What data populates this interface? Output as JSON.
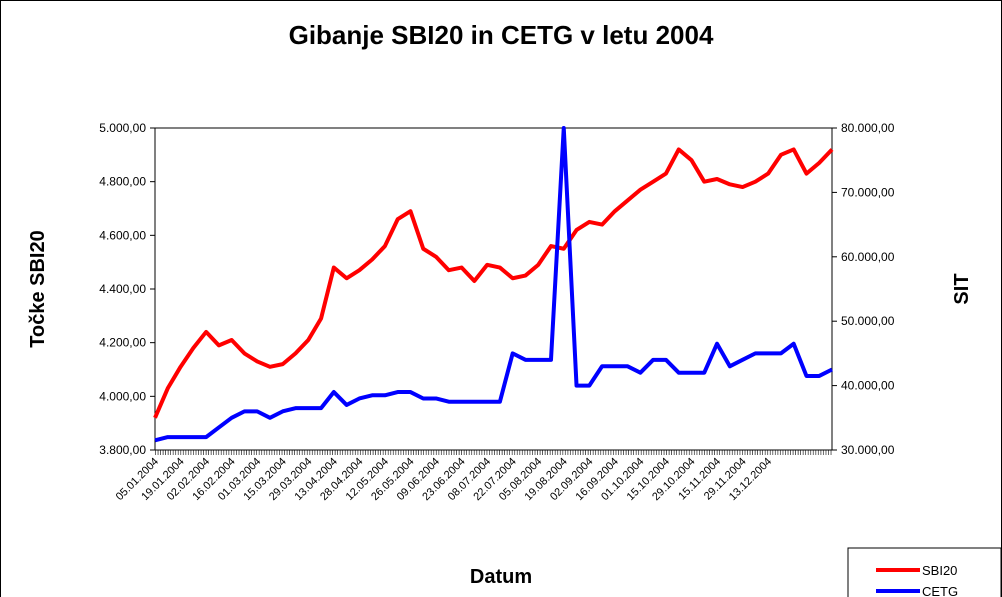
{
  "chart_data": {
    "type": "line",
    "title": "Gibanje SBI20 in CETG v letu 2004",
    "x_label": "Datum",
    "y_label": "Točke SBI20",
    "y2_label": "SIT",
    "legend": "bottom-right",
    "categories": [
      "05.01.2004",
      null,
      "19.01.2004",
      null,
      "02.02.2004",
      null,
      "16.02.2004",
      null,
      "01.03.2004",
      null,
      "15.03.2004",
      null,
      "29.03.2004",
      null,
      "13.04.2004",
      null,
      "28.04.2004",
      null,
      "12.05.2004",
      null,
      "26.05.2004",
      null,
      "09.06.2004",
      null,
      "23.06.2004",
      null,
      "08.07.2004",
      null,
      "22.07.2004",
      null,
      "05.08.2004",
      null,
      "19.08.2004",
      null,
      "02.09.2004",
      null,
      "16.09.2004",
      null,
      "01.10.2004",
      null,
      "15.10.2004",
      null,
      "29.10.2004",
      null,
      "15.11.2004",
      null,
      "29.11.2004",
      null,
      "13.12.2004",
      null,
      null,
      null,
      null,
      null
    ],
    "ylim": [
      3800,
      5000
    ],
    "yticks": [
      {
        "value": 3800,
        "label": "3.800,00"
      },
      {
        "value": 4000,
        "label": "4.000,00"
      },
      {
        "value": 4200,
        "label": "4.200,00"
      },
      {
        "value": 4400,
        "label": "4.400,00"
      },
      {
        "value": 4600,
        "label": "4.600,00"
      },
      {
        "value": 4800,
        "label": "4.800,00"
      },
      {
        "value": 5000,
        "label": "5.000,00"
      }
    ],
    "y2lim": [
      30000,
      80000
    ],
    "y2ticks": [
      {
        "value": 30000,
        "label": "30.000,00"
      },
      {
        "value": 40000,
        "label": "40.000,00"
      },
      {
        "value": 50000,
        "label": "50.000,00"
      },
      {
        "value": 60000,
        "label": "60.000,00"
      },
      {
        "value": 70000,
        "label": "70.000,00"
      },
      {
        "value": 80000,
        "label": "80.000,00"
      }
    ],
    "series": [
      {
        "name": "SBI20",
        "color": "#ff0000",
        "values": [
          3920,
          4030,
          4110,
          4180,
          4240,
          4190,
          4210,
          4160,
          4130,
          4110,
          4120,
          4160,
          4210,
          4290,
          4480,
          4440,
          4470,
          4510,
          4560,
          4660,
          4690,
          4550,
          4520,
          4470,
          4480,
          4430,
          4490,
          4480,
          4440,
          4450,
          4490,
          4560,
          4550,
          4620,
          4650,
          4640,
          4690,
          4730,
          4770,
          4800,
          4830,
          4920,
          4880,
          4800,
          4810,
          4790,
          4780,
          4800,
          4830,
          4900,
          4920,
          4830,
          4870,
          4920
        ]
      },
      {
        "name": "CETG",
        "color": "#0000ff",
        "axis": "y2",
        "values": [
          31500,
          32000,
          32000,
          32000,
          32000,
          33500,
          35000,
          36000,
          36000,
          35000,
          36000,
          36500,
          36500,
          36500,
          39000,
          37000,
          38000,
          38500,
          38500,
          39000,
          39000,
          38000,
          38000,
          37500,
          37500,
          37500,
          37500,
          37500,
          45000,
          44000,
          44000,
          44000,
          80000,
          40000,
          40000,
          43000,
          43000,
          43000,
          42000,
          44000,
          44000,
          42000,
          42000,
          42000,
          46500,
          43000,
          44000,
          45000,
          45000,
          45000,
          46500,
          41500,
          41500,
          42500
        ]
      }
    ]
  }
}
